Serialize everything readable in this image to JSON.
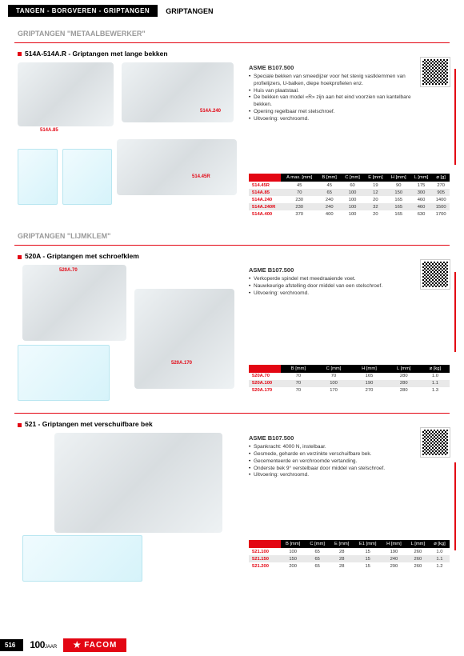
{
  "header": {
    "breadcrumb": "TANGEN - BORGVEREN - GRIPTANGEN",
    "title": "GRIPTANGEN"
  },
  "subheadings": {
    "metal": "GRIPTANGEN \"METAALBEWERKER\"",
    "glue": "GRIPTANGEN \"LIJMKLEM\""
  },
  "section1": {
    "title": "514A-514A.R - Griptangen met lange bekken",
    "asme": "ASME B107.500",
    "bullets": [
      "Speciale bekken van smeedijzer voor het stevig vastklemmen van profielijzers, U-balken, diepe hoekprofielen enz.",
      "Huis van plaatstaal.",
      "De bekken van model «R» zijn aan het eind voorzien van kantelbare bekken.",
      "Opening regelbaar met stelschroef.",
      "Uitvoering: verchroomd."
    ],
    "callouts": {
      "a": "514A.85",
      "b": "514A.240",
      "c": "514.45R"
    },
    "table": {
      "head": [
        "",
        "A max. [mm]",
        "B [mm]",
        "C [mm]",
        "E [mm]",
        "H [mm]",
        "L [mm]",
        "⌀ [g]"
      ],
      "rows": [
        [
          "514.45R",
          "45",
          "45",
          "60",
          "19",
          "90",
          "175",
          "270"
        ],
        [
          "514A.85",
          "70",
          "65",
          "100",
          "12",
          "150",
          "300",
          "905"
        ],
        [
          "514A.240",
          "230",
          "240",
          "100",
          "20",
          "165",
          "460",
          "1400"
        ],
        [
          "514A.240R",
          "230",
          "240",
          "100",
          "32",
          "165",
          "460",
          "1500"
        ],
        [
          "514A.400",
          "370",
          "400",
          "100",
          "20",
          "165",
          "630",
          "1700"
        ]
      ]
    }
  },
  "section2": {
    "title": "520A - Griptangen met schroefklem",
    "asme": "ASME B107.500",
    "bullets": [
      "Verkoperde spindel met meedraaiende voet.",
      "Nauwkeurige afstelling door middel van een stelschroef.",
      "Uitvoering: verchroomd."
    ],
    "callouts": {
      "a": "520A.70",
      "b": "520A.170"
    },
    "table": {
      "head": [
        "",
        "B [mm]",
        "C [mm]",
        "H [mm]",
        "L [mm]",
        "⌀ [kg]"
      ],
      "rows": [
        [
          "520A.70",
          "70",
          "70",
          "165",
          "280",
          "1.0"
        ],
        [
          "520A.100",
          "70",
          "100",
          "190",
          "280",
          "1.1"
        ],
        [
          "520A.170",
          "70",
          "170",
          "270",
          "280",
          "1.3"
        ]
      ]
    }
  },
  "section3": {
    "title": "521 - Griptangen met verschuifbare bek",
    "asme": "ASME B107.500",
    "bullets": [
      "Spankracht: 4000 N, instelbaar.",
      "Gesmede, geharde en verzinkte verschuifbare bek.",
      "Gecementeerde en verchroomde vertanding.",
      "Onderste bek 9° verstelbaar door middel van stelschroef.",
      "Uitvoering: verchroomd."
    ],
    "table": {
      "head": [
        "",
        "B [mm]",
        "C [mm]",
        "E [mm]",
        "E1 [mm]",
        "H [mm]",
        "L [mm]",
        "⌀ [kg]"
      ],
      "rows": [
        [
          "521.100",
          "100",
          "65",
          "28",
          "15",
          "190",
          "260",
          "1.0"
        ],
        [
          "521.150",
          "150",
          "65",
          "28",
          "15",
          "240",
          "260",
          "1.1"
        ],
        [
          "521.200",
          "200",
          "65",
          "28",
          "15",
          "290",
          "260",
          "1.2"
        ]
      ]
    }
  },
  "footer": {
    "page": "516",
    "anniversary_big": "100",
    "anniversary_small": "JAAR",
    "brand": "FACOM"
  },
  "colors": {
    "red": "#e30613",
    "black": "#000000",
    "grey_band": "#e9e9e9"
  }
}
